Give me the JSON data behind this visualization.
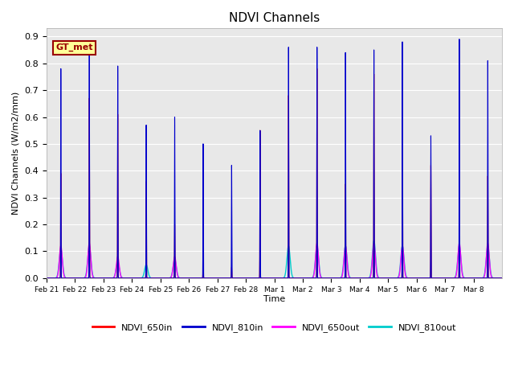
{
  "title": "NDVI Channels",
  "ylabel": "NDVI Channels (W/m2/mm)",
  "xlabel": "Time",
  "ylim": [
    0.0,
    0.93
  ],
  "yticks": [
    0.0,
    0.1,
    0.2,
    0.3,
    0.4,
    0.5,
    0.6,
    0.7,
    0.8,
    0.9
  ],
  "colors": {
    "NDVI_650in": "#ff0000",
    "NDVI_810in": "#0000cc",
    "NDVI_650out": "#ff00ff",
    "NDVI_810out": "#00cccc"
  },
  "background_color": "#e8e8e8",
  "gt_label": "GT_met",
  "gt_bg": "#ffff99",
  "gt_border": "#990000",
  "xtick_labels": [
    "Feb 21",
    "Feb 22",
    "Feb 23",
    "Feb 24",
    "Feb 25",
    "Feb 26",
    "Feb 27",
    "Feb 28",
    "Mar 1",
    "Mar 2",
    "Mar 3",
    "Mar 4",
    "Mar 5",
    "Mar 6",
    "Mar 7",
    "Mar 8"
  ],
  "num_days": 16,
  "peaks_650in": [
    0.39,
    0.67,
    0.61,
    0.36,
    0.2,
    0.08,
    0.04,
    0.55,
    0.68,
    0.78,
    0.35,
    0.76,
    0.65,
    0.42,
    0.48,
    0.38
  ],
  "peaks_810in": [
    0.78,
    0.86,
    0.79,
    0.57,
    0.6,
    0.5,
    0.42,
    0.55,
    0.86,
    0.86,
    0.84,
    0.85,
    0.88,
    0.53,
    0.89,
    0.81
  ],
  "peaks_650out": [
    0.12,
    0.13,
    0.08,
    0.0,
    0.08,
    0.0,
    0.0,
    0.0,
    0.0,
    0.13,
    0.12,
    0.13,
    0.12,
    0.0,
    0.13,
    0.13
  ],
  "peaks_810out": [
    0.11,
    0.12,
    0.06,
    0.05,
    0.07,
    0.0,
    0.0,
    0.0,
    0.12,
    0.12,
    0.12,
    0.14,
    0.12,
    0.0,
    0.12,
    0.12
  ],
  "offsets_650in": [
    0.5,
    0.5,
    0.5,
    0.5,
    0.5,
    0.5,
    0.5,
    0.5,
    0.5,
    0.5,
    0.5,
    0.5,
    0.5,
    0.5,
    0.5,
    0.5
  ],
  "offsets_810in": [
    0.5,
    0.5,
    0.5,
    0.5,
    0.5,
    0.5,
    0.5,
    0.5,
    0.5,
    0.5,
    0.5,
    0.5,
    0.5,
    0.5,
    0.5,
    0.5
  ]
}
